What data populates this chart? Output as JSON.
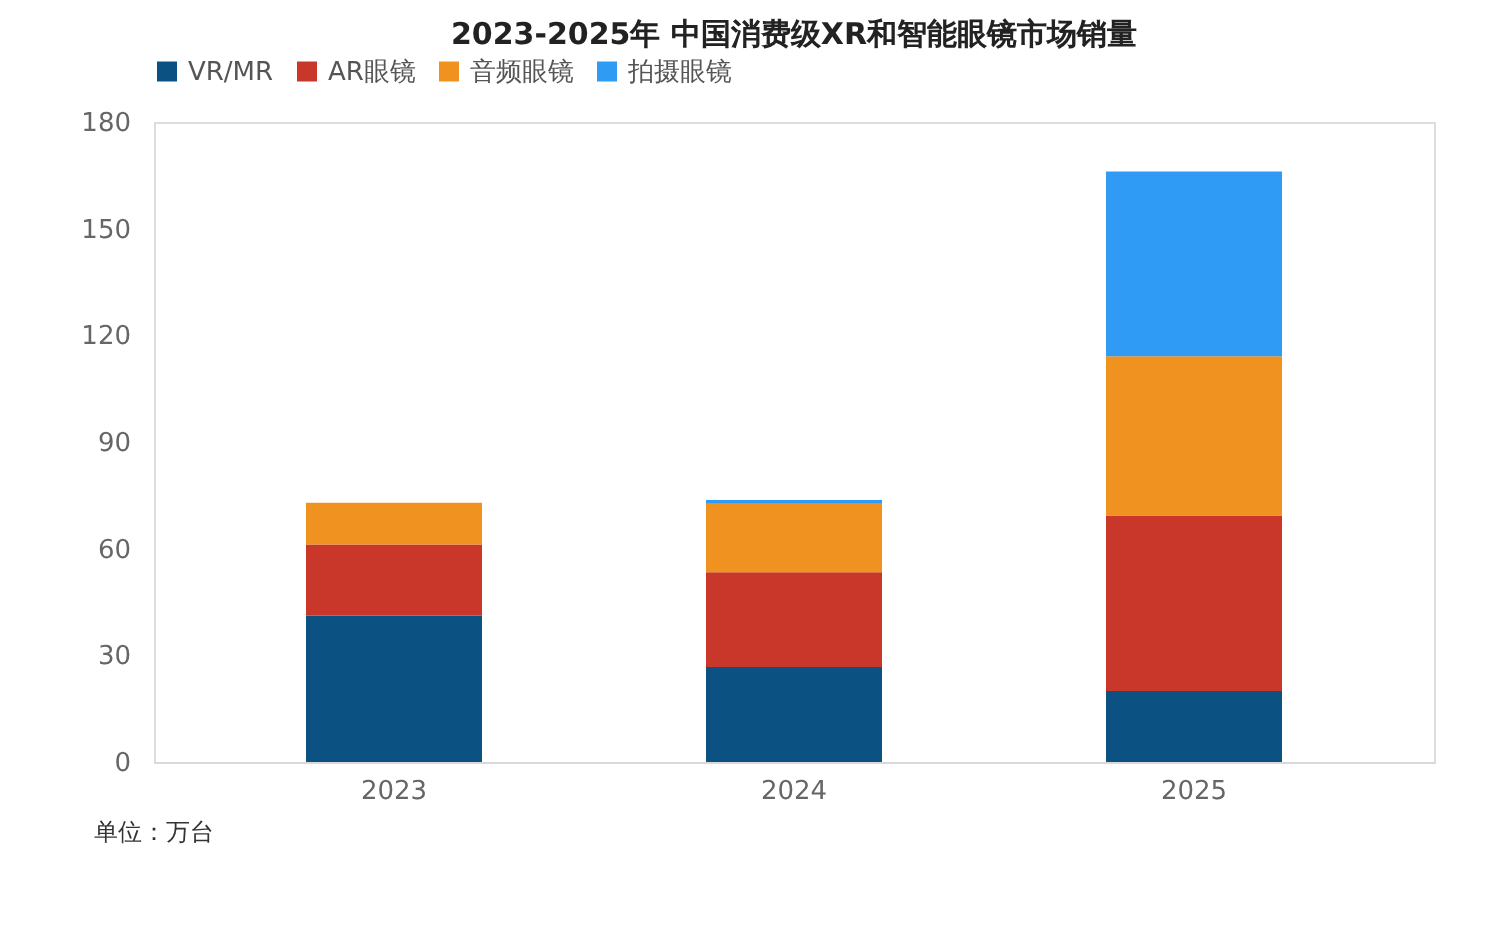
{
  "chart_data": {
    "type": "bar",
    "stacked": true,
    "title": "2023-2025年 中国消费级XR和智能眼镜市场销量",
    "categories": [
      "2023",
      "2024",
      "2025"
    ],
    "series": [
      {
        "name": "VR/MR",
        "color": "#0b5283",
        "values": [
          41.2,
          26.7,
          20.0
        ]
      },
      {
        "name": "AR眼镜",
        "color": "#c9372b",
        "values": [
          20.0,
          26.7,
          49.3
        ]
      },
      {
        "name": "音频眼镜",
        "color": "#ef9220",
        "values": [
          11.7,
          19.2,
          44.8
        ]
      },
      {
        "name": "拍摄眼镜",
        "color": "#2f9bf4",
        "values": [
          0,
          1.1,
          52.0
        ]
      }
    ],
    "ylim": [
      0,
      180
    ],
    "yticks": [
      0,
      30,
      60,
      90,
      120,
      150,
      180
    ],
    "grid": false,
    "legend": "top",
    "annotations": [
      "单位：万台"
    ]
  }
}
